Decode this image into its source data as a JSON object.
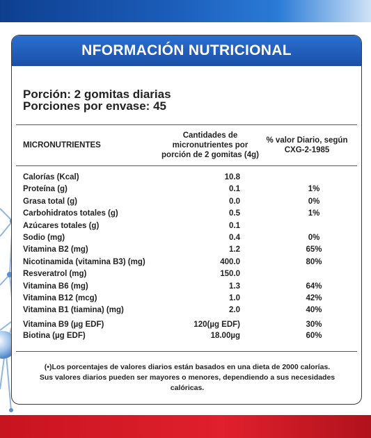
{
  "header": {
    "title": "NFORMACIÓN NUTRICIONAL"
  },
  "portion": {
    "line1": "Porción: 2 gomitas diarias",
    "line2": "Porciones por envase: 45"
  },
  "columns": {
    "micronutrients": "MICRONUTRIENTES",
    "quantity_l1": "Cantidades de",
    "quantity_l2": "micronutrientes por",
    "quantity_l3": "porción de 2 gomitas (4g)",
    "percent_l1": "% valor Diario, según",
    "percent_l2": "CXG-2-1985"
  },
  "rows": [
    {
      "name": "Calorías (Kcal)",
      "amount": "10.8",
      "percent": ""
    },
    {
      "name": "Proteína (g)",
      "amount": "0.1",
      "percent": "1%"
    },
    {
      "name": "Grasa total (g)",
      "amount": "0.0",
      "percent": "0%"
    },
    {
      "name": "Carbohidratos totales (g)",
      "amount": "0.5",
      "percent": "1%"
    },
    {
      "name": "Azúcares totales (g)",
      "amount": "0.1",
      "percent": ""
    },
    {
      "name": "Sodio (mg)",
      "amount": "0.4",
      "percent": "0%"
    },
    {
      "name": "Vitamina B2 (mg)",
      "amount": "1.2",
      "percent": "65%"
    },
    {
      "name": "Nicotinamida (vitamina B3) (mg)",
      "amount": "400.0",
      "percent": "80%"
    },
    {
      "name": "Resveratrol (mg)",
      "amount": "150.0",
      "percent": ""
    },
    {
      "name": "Vitamina B6 (mg)",
      "amount": "1.3",
      "percent": "64%"
    },
    {
      "name": "Vitamina B12 (mcg)",
      "amount": "1.0",
      "percent": "42%"
    },
    {
      "name": "Vitamina B1 (tiamina) (mg)",
      "amount": "2.0",
      "percent": "40%"
    },
    {
      "name": "Vitamina B9 (µg EDF)",
      "amount": "120(µg EDF)",
      "percent": "30%"
    },
    {
      "name": "Biotina  (µg EDF)",
      "amount": "18.00µg",
      "percent": "60%"
    }
  ],
  "footnote": {
    "line1": "(•)Los porcentajes de valores diarios están basados en una dieta de 2000 calorías.",
    "line2": "Sus valores diarios pueden ser mayores o menores, dependiendo a sus necesidades",
    "line3": "calóricas."
  },
  "colors": {
    "header_blue": "#1a4fa8",
    "top_band": "#1b5cb8",
    "bottom_band": "#d81b27"
  }
}
